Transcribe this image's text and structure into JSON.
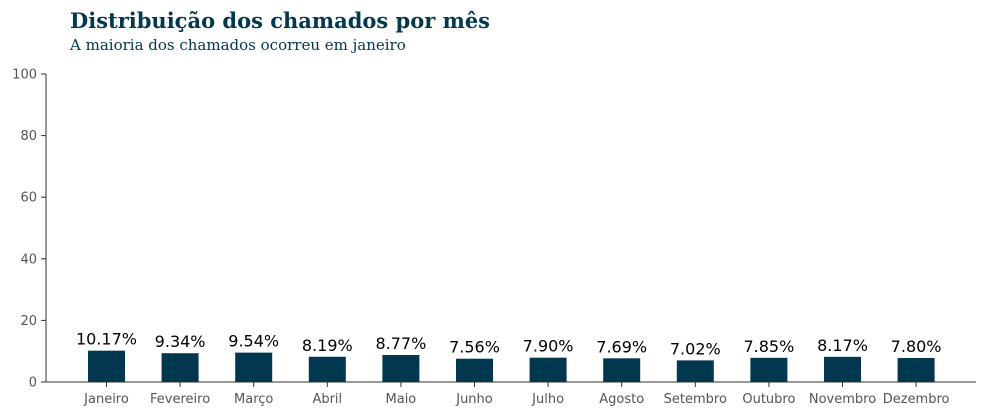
{
  "chart_data": {
    "type": "bar",
    "title": "Distribuição dos chamados por mês",
    "subtitle": "A maioria dos chamados ocorreu em janeiro",
    "xlabel": "",
    "ylabel": "",
    "ylim": [
      0,
      100
    ],
    "yticks": [
      0,
      20,
      40,
      60,
      80,
      100
    ],
    "grid": false,
    "bar_color": "#023750",
    "categories": [
      "Janeiro",
      "Fevereiro",
      "Março",
      "Abril",
      "Maio",
      "Junho",
      "Julho",
      "Agosto",
      "Setembro",
      "Outubro",
      "Novembro",
      "Dezembro"
    ],
    "values": [
      10.17,
      9.34,
      9.54,
      8.19,
      8.77,
      7.56,
      7.9,
      7.69,
      7.02,
      7.85,
      8.17,
      7.8
    ],
    "data_labels": [
      "10.17%",
      "9.34%",
      "9.54%",
      "8.19%",
      "8.77%",
      "7.56%",
      "7.90%",
      "7.69%",
      "7.02%",
      "7.85%",
      "8.17%",
      "7.80%"
    ]
  }
}
